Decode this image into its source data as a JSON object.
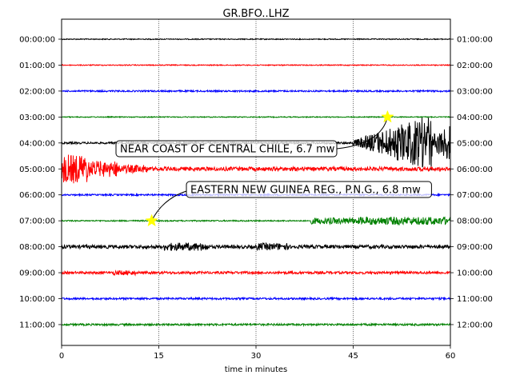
{
  "chart_data": {
    "type": "line",
    "title": "GR.BFO..LHZ",
    "xlabel": "time in minutes",
    "xlim": [
      0,
      60
    ],
    "xticks": [
      0,
      15,
      30,
      45,
      60
    ],
    "grid_x": true,
    "left_labels": [
      "00:00:00",
      "01:00:00",
      "02:00:00",
      "03:00:00",
      "04:00:00",
      "05:00:00",
      "06:00:00",
      "07:00:00",
      "08:00:00",
      "09:00:00",
      "10:00:00",
      "11:00:00"
    ],
    "right_labels": [
      "01:00:00",
      "02:00:00",
      "03:00:00",
      "04:00:00",
      "05:00:00",
      "06:00:00",
      "07:00:00",
      "08:00:00",
      "09:00:00",
      "10:00:00",
      "11:00:00",
      "12:00:00"
    ],
    "trace_colors": [
      "#000000",
      "#ff0000",
      "#0000ff",
      "#008000"
    ],
    "events": [
      {
        "label": "NEAR COAST OF CENTRAL CHILE, 6.7 mw",
        "trace": 3,
        "minute": 50.3
      },
      {
        "label": "EASTERN NEW GUINEA REG., P.N.G., 6.8 mw",
        "trace": 7,
        "minute": 13.9
      }
    ],
    "star_color": "#ffff00"
  }
}
